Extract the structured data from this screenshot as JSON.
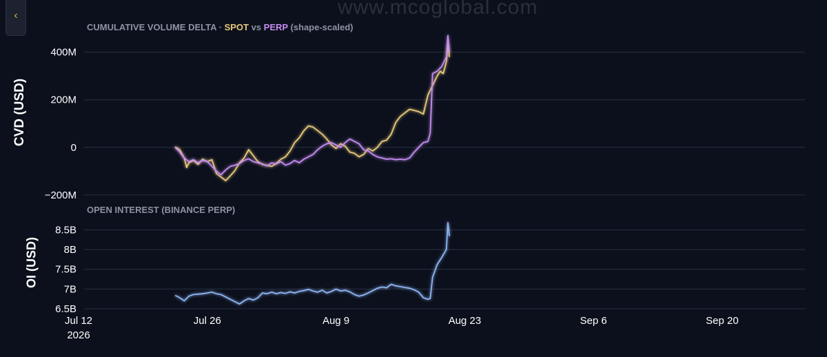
{
  "ui": {
    "collapse_glyph": "‹",
    "collapse_icon": "chevron-left-icon",
    "watermark": "www.mcoglobal.com"
  },
  "colors": {
    "background": "#0b101c",
    "spot": "#e9c97a",
    "perp": "#c58cf0",
    "open_interest": "#8fb4f4"
  },
  "chart_data": [
    {
      "type": "line",
      "title_parts": {
        "prefix": "CUMULATIVE VOLUME DELTA · ",
        "spot": "SPOT",
        "mid": " vs ",
        "perp": "PERP",
        "suffix": " (shape-scaled)"
      },
      "ylabel": "CVD (USD)",
      "ylim": [
        -215,
        460
      ],
      "yticks": [
        -200,
        0,
        200,
        400
      ],
      "ytick_labels": [
        "−200M",
        "0",
        "200M",
        "400M"
      ],
      "grid": true,
      "x_type": "date",
      "xlim": [
        "2026-07-12",
        "2026-09-29"
      ],
      "series": [
        {
          "name": "SPOT",
          "color": "#e9c97a",
          "points": [
            [
              "2026-07-22T12:00",
              2
            ],
            [
              "2026-07-23T00:00",
              -10
            ],
            [
              "2026-07-23T12:00",
              -45
            ],
            [
              "2026-07-23T18:00",
              -85
            ],
            [
              "2026-07-24T00:00",
              -65
            ],
            [
              "2026-07-24T12:00",
              -55
            ],
            [
              "2026-07-25T00:00",
              -72
            ],
            [
              "2026-07-25T12:00",
              -50
            ],
            [
              "2026-07-26T00:00",
              -60
            ],
            [
              "2026-07-26T12:00",
              -52
            ],
            [
              "2026-07-27T00:00",
              -110
            ],
            [
              "2026-07-27T12:00",
              -125
            ],
            [
              "2026-07-28T00:00",
              -140
            ],
            [
              "2026-07-28T12:00",
              -120
            ],
            [
              "2026-07-29T00:00",
              -98
            ],
            [
              "2026-07-29T12:00",
              -65
            ],
            [
              "2026-07-30T00:00",
              -45
            ],
            [
              "2026-07-30T12:00",
              -10
            ],
            [
              "2026-07-31T00:00",
              -35
            ],
            [
              "2026-07-31T12:00",
              -60
            ],
            [
              "2026-08-01T00:00",
              -72
            ],
            [
              "2026-08-02T00:00",
              -80
            ],
            [
              "2026-08-02T12:00",
              -68
            ],
            [
              "2026-08-03T00:00",
              -50
            ],
            [
              "2026-08-03T12:00",
              -40
            ],
            [
              "2026-08-04T00:00",
              -15
            ],
            [
              "2026-08-04T12:00",
              20
            ],
            [
              "2026-08-05T00:00",
              40
            ],
            [
              "2026-08-05T12:00",
              70
            ],
            [
              "2026-08-06T00:00",
              90
            ],
            [
              "2026-08-06T12:00",
              85
            ],
            [
              "2026-08-07T00:00",
              70
            ],
            [
              "2026-08-07T12:00",
              55
            ],
            [
              "2026-08-08T00:00",
              35
            ],
            [
              "2026-08-08T12:00",
              10
            ],
            [
              "2026-08-09T00:00",
              -5
            ],
            [
              "2026-08-09T12:00",
              15
            ],
            [
              "2026-08-10T00:00",
              5
            ],
            [
              "2026-08-10T12:00",
              -20
            ],
            [
              "2026-08-11T00:00",
              -25
            ],
            [
              "2026-08-11T12:00",
              -40
            ],
            [
              "2026-08-12T00:00",
              -30
            ],
            [
              "2026-08-12T12:00",
              -5
            ],
            [
              "2026-08-13T00:00",
              -15
            ],
            [
              "2026-08-13T12:00",
              0
            ],
            [
              "2026-08-14T00:00",
              25
            ],
            [
              "2026-08-14T12:00",
              30
            ],
            [
              "2026-08-15T00:00",
              55
            ],
            [
              "2026-08-15T12:00",
              105
            ],
            [
              "2026-08-16T00:00",
              130
            ],
            [
              "2026-08-16T12:00",
              145
            ],
            [
              "2026-08-17T00:00",
              160
            ],
            [
              "2026-08-17T12:00",
              155
            ],
            [
              "2026-08-18T00:00",
              150
            ],
            [
              "2026-08-18T12:00",
              140
            ],
            [
              "2026-08-19T00:00",
              220
            ],
            [
              "2026-08-19T12:00",
              260
            ],
            [
              "2026-08-20T00:00",
              300
            ],
            [
              "2026-08-20T08:00",
              320
            ],
            [
              "2026-08-20T16:00",
              310
            ],
            [
              "2026-08-21T00:00",
              360
            ],
            [
              "2026-08-21T04:00",
              430
            ],
            [
              "2026-08-21T08:00",
              380
            ]
          ]
        },
        {
          "name": "PERP",
          "color": "#c58cf0",
          "points": [
            [
              "2026-07-22T12:00",
              0
            ],
            [
              "2026-07-23T00:00",
              -20
            ],
            [
              "2026-07-23T12:00",
              -45
            ],
            [
              "2026-07-24T00:00",
              -60
            ],
            [
              "2026-07-24T12:00",
              -52
            ],
            [
              "2026-07-25T00:00",
              -65
            ],
            [
              "2026-07-25T12:00",
              -55
            ],
            [
              "2026-07-26T00:00",
              -60
            ],
            [
              "2026-07-26T12:00",
              -80
            ],
            [
              "2026-07-27T00:00",
              -100
            ],
            [
              "2026-07-27T12:00",
              -115
            ],
            [
              "2026-07-28T00:00",
              -95
            ],
            [
              "2026-07-28T12:00",
              -80
            ],
            [
              "2026-07-29T00:00",
              -75
            ],
            [
              "2026-07-29T12:00",
              -68
            ],
            [
              "2026-07-30T00:00",
              -55
            ],
            [
              "2026-07-30T12:00",
              -48
            ],
            [
              "2026-07-31T00:00",
              -60
            ],
            [
              "2026-08-01T00:00",
              -70
            ],
            [
              "2026-08-01T12:00",
              -78
            ],
            [
              "2026-08-02T00:00",
              -65
            ],
            [
              "2026-08-02T12:00",
              -70
            ],
            [
              "2026-08-03T00:00",
              -60
            ],
            [
              "2026-08-03T12:00",
              -75
            ],
            [
              "2026-08-04T00:00",
              -68
            ],
            [
              "2026-08-04T12:00",
              -55
            ],
            [
              "2026-08-05T00:00",
              -65
            ],
            [
              "2026-08-05T12:00",
              -50
            ],
            [
              "2026-08-06T00:00",
              -40
            ],
            [
              "2026-08-06T12:00",
              -30
            ],
            [
              "2026-08-07T00:00",
              -10
            ],
            [
              "2026-08-07T12:00",
              5
            ],
            [
              "2026-08-08T00:00",
              15
            ],
            [
              "2026-08-08T12:00",
              20
            ],
            [
              "2026-08-09T00:00",
              10
            ],
            [
              "2026-08-09T12:00",
              0
            ],
            [
              "2026-08-10T00:00",
              20
            ],
            [
              "2026-08-10T12:00",
              35
            ],
            [
              "2026-08-11T00:00",
              25
            ],
            [
              "2026-08-11T12:00",
              15
            ],
            [
              "2026-08-12T00:00",
              -10
            ],
            [
              "2026-08-12T12:00",
              -15
            ],
            [
              "2026-08-13T00:00",
              -30
            ],
            [
              "2026-08-13T12:00",
              -40
            ],
            [
              "2026-08-14T00:00",
              -45
            ],
            [
              "2026-08-14T12:00",
              -50
            ],
            [
              "2026-08-15T00:00",
              -48
            ],
            [
              "2026-08-15T12:00",
              -52
            ],
            [
              "2026-08-16T00:00",
              -50
            ],
            [
              "2026-08-16T12:00",
              -52
            ],
            [
              "2026-08-17T00:00",
              -45
            ],
            [
              "2026-08-17T12:00",
              -20
            ],
            [
              "2026-08-18T00:00",
              0
            ],
            [
              "2026-08-18T12:00",
              20
            ],
            [
              "2026-08-19T00:00",
              25
            ],
            [
              "2026-08-19T06:00",
              60
            ],
            [
              "2026-08-19T12:00",
              310
            ],
            [
              "2026-08-20T00:00",
              320
            ],
            [
              "2026-08-20T12:00",
              340
            ],
            [
              "2026-08-21T00:00",
              380
            ],
            [
              "2026-08-21T04:00",
              470
            ],
            [
              "2026-08-21T08:00",
              400
            ]
          ]
        }
      ]
    },
    {
      "type": "line",
      "title": "OPEN INTEREST (BINANCE PERP)",
      "ylabel": "OI (USD)",
      "ylim": [
        6.5,
        8.7
      ],
      "yticks": [
        6.5,
        7,
        7.5,
        8,
        8.5
      ],
      "ytick_labels": [
        "6.5B",
        "7B",
        "7.5B",
        "8B",
        "8.5B"
      ],
      "grid": true,
      "x_type": "date",
      "xlim": [
        "2026-07-12",
        "2026-09-29"
      ],
      "xticks": [
        "2026-07-12",
        "2026-07-26",
        "2026-08-09",
        "2026-08-23",
        "2026-09-06",
        "2026-09-20"
      ],
      "xtick_labels": [
        "Jul 12",
        "Jul 26",
        "Aug 9",
        "Aug 23",
        "Sep 6",
        "Sep 20"
      ],
      "xtick_year": "2026",
      "series": [
        {
          "name": "Open interest",
          "color": "#8fb4f4",
          "points": [
            [
              "2026-07-22T12:00",
              6.84
            ],
            [
              "2026-07-23T00:00",
              6.78
            ],
            [
              "2026-07-23T12:00",
              6.7
            ],
            [
              "2026-07-24T00:00",
              6.82
            ],
            [
              "2026-07-24T12:00",
              6.86
            ],
            [
              "2026-07-25T00:00",
              6.87
            ],
            [
              "2026-07-25T12:00",
              6.88
            ],
            [
              "2026-07-26T00:00",
              6.9
            ],
            [
              "2026-07-26T12:00",
              6.92
            ],
            [
              "2026-07-27T00:00",
              6.88
            ],
            [
              "2026-07-27T12:00",
              6.86
            ],
            [
              "2026-07-28T00:00",
              6.8
            ],
            [
              "2026-07-28T12:00",
              6.74
            ],
            [
              "2026-07-29T00:00",
              6.68
            ],
            [
              "2026-07-29T12:00",
              6.62
            ],
            [
              "2026-07-30T00:00",
              6.7
            ],
            [
              "2026-07-30T12:00",
              6.76
            ],
            [
              "2026-07-31T00:00",
              6.72
            ],
            [
              "2026-07-31T12:00",
              6.78
            ],
            [
              "2026-08-01T00:00",
              6.9
            ],
            [
              "2026-08-01T12:00",
              6.88
            ],
            [
              "2026-08-02T00:00",
              6.92
            ],
            [
              "2026-08-02T12:00",
              6.88
            ],
            [
              "2026-08-03T00:00",
              6.91
            ],
            [
              "2026-08-03T12:00",
              6.89
            ],
            [
              "2026-08-04T00:00",
              6.93
            ],
            [
              "2026-08-04T12:00",
              6.9
            ],
            [
              "2026-08-05T00:00",
              6.94
            ],
            [
              "2026-08-05T12:00",
              6.96
            ],
            [
              "2026-08-06T00:00",
              6.99
            ],
            [
              "2026-08-06T12:00",
              6.95
            ],
            [
              "2026-08-07T00:00",
              6.92
            ],
            [
              "2026-08-07T12:00",
              6.97
            ],
            [
              "2026-08-08T00:00",
              6.9
            ],
            [
              "2026-08-08T12:00",
              6.94
            ],
            [
              "2026-08-09T00:00",
              7.0
            ],
            [
              "2026-08-09T12:00",
              6.95
            ],
            [
              "2026-08-10T00:00",
              6.97
            ],
            [
              "2026-08-10T12:00",
              6.93
            ],
            [
              "2026-08-11T00:00",
              6.86
            ],
            [
              "2026-08-11T12:00",
              6.82
            ],
            [
              "2026-08-12T00:00",
              6.85
            ],
            [
              "2026-08-12T12:00",
              6.9
            ],
            [
              "2026-08-13T00:00",
              6.96
            ],
            [
              "2026-08-13T12:00",
              7.02
            ],
            [
              "2026-08-14T00:00",
              7.05
            ],
            [
              "2026-08-14T12:00",
              7.03
            ],
            [
              "2026-08-15T00:00",
              7.12
            ],
            [
              "2026-08-15T12:00",
              7.08
            ],
            [
              "2026-08-16T00:00",
              7.06
            ],
            [
              "2026-08-16T12:00",
              7.04
            ],
            [
              "2026-08-17T00:00",
              7.02
            ],
            [
              "2026-08-17T12:00",
              6.98
            ],
            [
              "2026-08-18T00:00",
              6.92
            ],
            [
              "2026-08-18T12:00",
              6.78
            ],
            [
              "2026-08-19T00:00",
              6.74
            ],
            [
              "2026-08-19T06:00",
              6.76
            ],
            [
              "2026-08-19T12:00",
              7.3
            ],
            [
              "2026-08-20T00:00",
              7.62
            ],
            [
              "2026-08-20T12:00",
              7.8
            ],
            [
              "2026-08-21T00:00",
              8.0
            ],
            [
              "2026-08-21T04:00",
              8.68
            ],
            [
              "2026-08-21T08:00",
              8.34
            ]
          ]
        }
      ]
    }
  ]
}
